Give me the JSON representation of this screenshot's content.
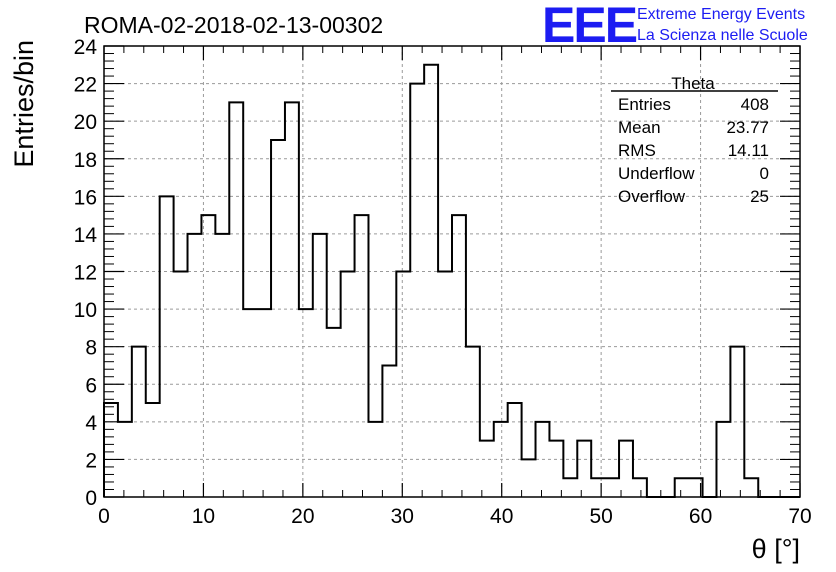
{
  "chart_data": {
    "type": "bar",
    "title": "ROMA-02-2018-02-13-00302",
    "xlabel": "θ [°]",
    "ylabel": "Entries/bin",
    "xlim": [
      0,
      70
    ],
    "ylim": [
      0,
      24
    ],
    "grid": true,
    "bin_width": 1.4,
    "x_ticks": [
      "0",
      "10",
      "20",
      "30",
      "40",
      "50",
      "60",
      "70"
    ],
    "y_ticks": [
      "0",
      "2",
      "4",
      "6",
      "8",
      "10",
      "12",
      "14",
      "16",
      "18",
      "20",
      "22",
      "24"
    ],
    "values": [
      5,
      4,
      8,
      5,
      16,
      12,
      14,
      15,
      14,
      21,
      10,
      10,
      19,
      21,
      10,
      14,
      9,
      12,
      15,
      4,
      7,
      12,
      22,
      23,
      12,
      15,
      8,
      3,
      4,
      5,
      2,
      4,
      3,
      1,
      3,
      1,
      1,
      3,
      1,
      0,
      0,
      1,
      1,
      0,
      4,
      8,
      1,
      0,
      0,
      0
    ],
    "stats_box": {
      "header": "Theta",
      "rows": [
        {
          "label": "Entries",
          "value": "408"
        },
        {
          "label": "Mean",
          "value": "23.77"
        },
        {
          "label": "RMS",
          "value": "14.11"
        },
        {
          "label": "Underflow",
          "value": "0"
        },
        {
          "label": "Overflow",
          "value": "25"
        }
      ]
    }
  },
  "logo": {
    "mark": "EEE",
    "line1": "Extreme Energy Events",
    "line2": "La Scienza nelle Scuole",
    "color": "#1c1cf2"
  }
}
